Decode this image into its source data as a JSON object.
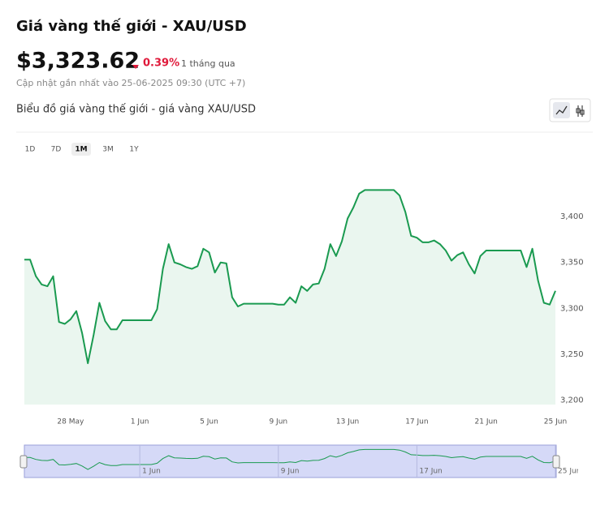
{
  "header": {
    "title": "Giá vàng thế giới - XAU/USD",
    "price": "$3,323.62",
    "change": "0.39%",
    "period": "1 tháng qua",
    "updated": "Cập nhật gần nhất vào 25-06-2025 09:30 (UTC +7)"
  },
  "chart_title": "Biểu đồ giá vàng thế giới - giá vàng XAU/USD",
  "ranges": [
    "1D",
    "7D",
    "1M",
    "3M",
    "1Y"
  ],
  "chart_data": {
    "type": "line",
    "color": "#1a9a50",
    "area": true,
    "grid": false,
    "categories": [
      null,
      null,
      null,
      null,
      null,
      null,
      null,
      null,
      "28 May",
      null,
      null,
      null,
      null,
      null,
      null,
      null,
      null,
      null,
      null,
      null,
      "1 Jun",
      null,
      null,
      null,
      null,
      null,
      null,
      null,
      null,
      null,
      null,
      null,
      "5 Jun",
      null,
      null,
      null,
      null,
      null,
      null,
      null,
      null,
      null,
      null,
      null,
      "9 Jun",
      null,
      null,
      null,
      null,
      null,
      null,
      null,
      null,
      null,
      null,
      null,
      "13 Jun",
      null,
      null,
      null,
      null,
      null,
      null,
      null,
      null,
      null,
      null,
      null,
      "17 Jun",
      null,
      null,
      null,
      null,
      null,
      null,
      null,
      null,
      null,
      null,
      null,
      "21 Jun",
      null,
      null,
      null,
      null,
      null,
      null,
      null,
      null,
      null,
      null,
      null,
      "25 Jun"
    ],
    "values": [
      3353,
      3353,
      3335,
      3326,
      3324,
      3335,
      3285,
      3283,
      3288,
      3297,
      3273,
      3240,
      3271,
      3306,
      3286,
      3277,
      3277,
      3287,
      3287,
      3287,
      3287,
      3287,
      3287,
      3299,
      3343,
      3370,
      3350,
      3348,
      3345,
      3343,
      3346,
      3365,
      3361,
      3339,
      3350,
      3349,
      3312,
      3302,
      3305,
      3305,
      3305,
      3305,
      3305,
      3305,
      3304,
      3304,
      3312,
      3306,
      3324,
      3319,
      3326,
      3327,
      3343,
      3370,
      3357,
      3373,
      3398,
      3410,
      3425,
      3429,
      3429,
      3429,
      3429,
      3429,
      3429,
      3423,
      3405,
      3379,
      3377,
      3372,
      3372,
      3374,
      3370,
      3363,
      3352,
      3358,
      3361,
      3348,
      3338,
      3357,
      3363,
      3363,
      3363,
      3363,
      3363,
      3363,
      3363,
      3345,
      3365,
      3330,
      3306,
      3304,
      3319
    ],
    "ylim": [
      3195,
      3455
    ],
    "yticks": [
      {
        "value": 3200,
        "label": "3,200"
      },
      {
        "value": 3250,
        "label": "3,250"
      },
      {
        "value": 3300,
        "label": "3,300"
      },
      {
        "value": 3350,
        "label": "3,350"
      },
      {
        "value": 3400,
        "label": "3,400"
      }
    ]
  }
}
